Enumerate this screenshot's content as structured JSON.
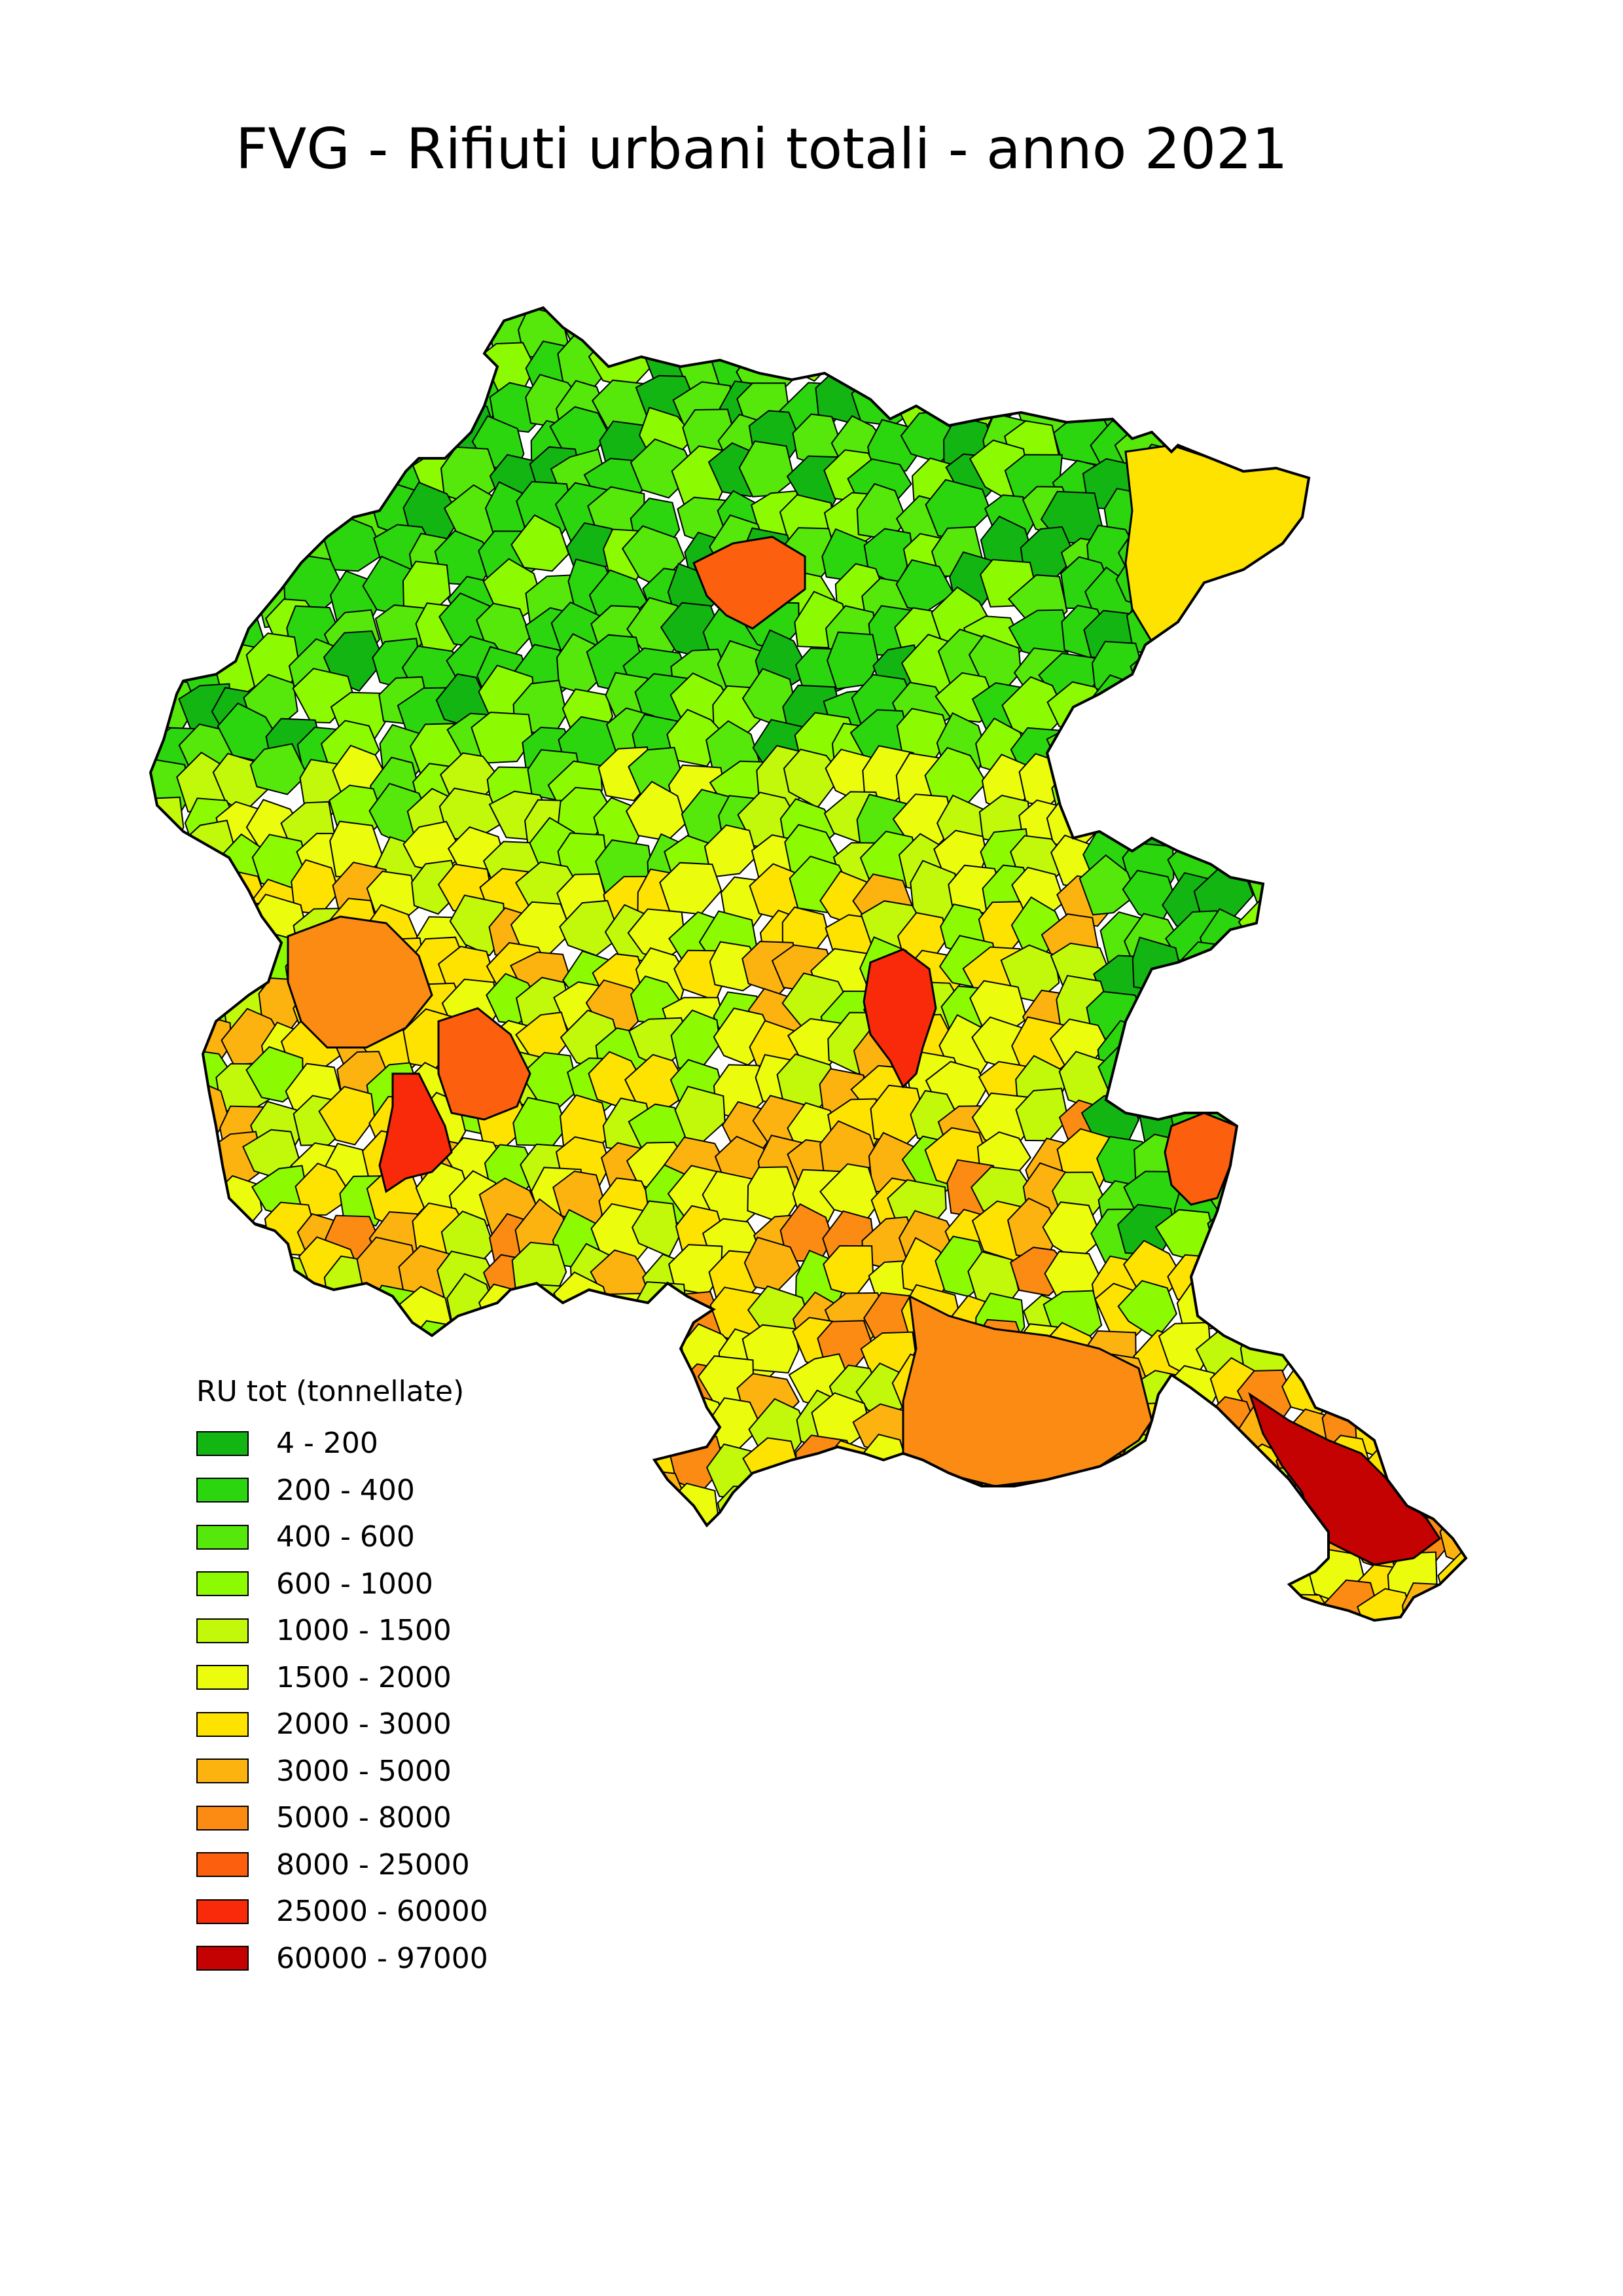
{
  "title": "FVG - Rifiuti urbani totali - anno 2021",
  "legend": {
    "title": "RU tot (tonnellate)",
    "classes": [
      {
        "label": "4 - 200",
        "color": "#13b513"
      },
      {
        "label": "200 - 400",
        "color": "#2bd60e"
      },
      {
        "label": "400 - 600",
        "color": "#55e80a"
      },
      {
        "label": "600 - 1000",
        "color": "#8cfb02"
      },
      {
        "label": "1000 - 1500",
        "color": "#c2f90a"
      },
      {
        "label": "1500 - 2000",
        "color": "#ecfc0d"
      },
      {
        "label": "2000 - 3000",
        "color": "#fee300"
      },
      {
        "label": "3000 - 5000",
        "color": "#fdb30f"
      },
      {
        "label": "5000 - 8000",
        "color": "#fb8b12"
      },
      {
        "label": "8000 - 25000",
        "color": "#fc5f0d"
      },
      {
        "label": "25000 - 60000",
        "color": "#f82a0a"
      },
      {
        "label": "60000 - 97000",
        "color": "#c40202"
      }
    ]
  }
}
